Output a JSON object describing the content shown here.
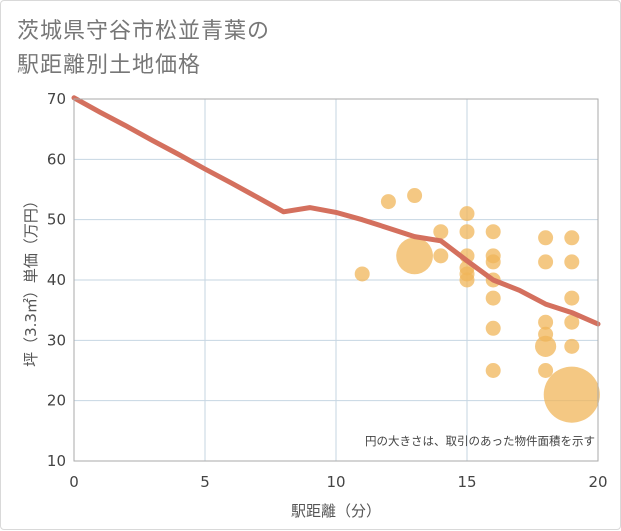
{
  "title_lines": [
    "茨城県守谷市松並青葉の",
    "駅距離別土地価格"
  ],
  "colors": {
    "line": "#d4705e",
    "bubble": "#f0b65a",
    "grid": "#c6d6e2",
    "plot_border": "#aaaaaa"
  },
  "chart_data": {
    "type": "scatter",
    "title": "茨城県守谷市松並青葉の駅距離別土地価格",
    "xlabel": "駅距離（分）",
    "ylabel": "坪（3.3㎡）単価（万円）",
    "xlim": [
      0,
      20
    ],
    "ylim": [
      10,
      70
    ],
    "xticks": [
      0,
      5,
      10,
      15,
      20
    ],
    "yticks": [
      10,
      20,
      30,
      40,
      50,
      60,
      70
    ],
    "grid": true,
    "note": "円の大きさは、取引のあった物件面積を示す",
    "trend_line": {
      "x": [
        0,
        1,
        2,
        3,
        4,
        5,
        6,
        7,
        8,
        9,
        10,
        11,
        12,
        13,
        14,
        15,
        16,
        17,
        18,
        19,
        20
      ],
      "y": [
        70.2,
        67.8,
        65.5,
        63.1,
        60.8,
        58.4,
        56.1,
        53.7,
        51.3,
        52.0,
        51.2,
        50.0,
        48.6,
        47.2,
        46.5,
        43.2,
        40.0,
        38.3,
        36.0,
        34.6,
        32.7
      ]
    },
    "points": [
      {
        "x": 11,
        "y": 41,
        "size": 1
      },
      {
        "x": 12,
        "y": 53,
        "size": 1
      },
      {
        "x": 13,
        "y": 54,
        "size": 1
      },
      {
        "x": 13,
        "y": 44,
        "size": 6
      },
      {
        "x": 14,
        "y": 48,
        "size": 1
      },
      {
        "x": 14,
        "y": 44,
        "size": 1
      },
      {
        "x": 15,
        "y": 51,
        "size": 1
      },
      {
        "x": 15,
        "y": 48,
        "size": 1
      },
      {
        "x": 15,
        "y": 44,
        "size": 1
      },
      {
        "x": 15,
        "y": 42,
        "size": 1
      },
      {
        "x": 15,
        "y": 41,
        "size": 1
      },
      {
        "x": 15,
        "y": 40,
        "size": 1
      },
      {
        "x": 16,
        "y": 48,
        "size": 1
      },
      {
        "x": 16,
        "y": 44,
        "size": 1
      },
      {
        "x": 16,
        "y": 43,
        "size": 1
      },
      {
        "x": 16,
        "y": 40,
        "size": 1
      },
      {
        "x": 16,
        "y": 37,
        "size": 1
      },
      {
        "x": 16,
        "y": 32,
        "size": 1
      },
      {
        "x": 16,
        "y": 25,
        "size": 1
      },
      {
        "x": 18,
        "y": 47,
        "size": 1
      },
      {
        "x": 18,
        "y": 43,
        "size": 1
      },
      {
        "x": 18,
        "y": 33,
        "size": 1
      },
      {
        "x": 18,
        "y": 31,
        "size": 1
      },
      {
        "x": 18,
        "y": 29,
        "size": 2
      },
      {
        "x": 18,
        "y": 25,
        "size": 1
      },
      {
        "x": 19,
        "y": 47,
        "size": 1
      },
      {
        "x": 19,
        "y": 43,
        "size": 1
      },
      {
        "x": 19,
        "y": 37,
        "size": 1
      },
      {
        "x": 19,
        "y": 33,
        "size": 1
      },
      {
        "x": 19,
        "y": 29,
        "size": 1
      },
      {
        "x": 19,
        "y": 21,
        "size": 14
      }
    ]
  }
}
